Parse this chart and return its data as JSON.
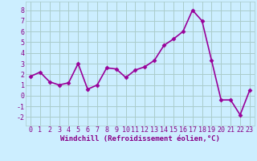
{
  "x": [
    0,
    1,
    2,
    3,
    4,
    5,
    6,
    7,
    8,
    9,
    10,
    11,
    12,
    13,
    14,
    15,
    16,
    17,
    18,
    19,
    20,
    21,
    22,
    23
  ],
  "y": [
    1.8,
    2.2,
    1.3,
    1.0,
    1.2,
    3.0,
    0.6,
    1.0,
    2.6,
    2.5,
    1.7,
    2.4,
    2.7,
    3.3,
    4.7,
    5.3,
    6.0,
    8.0,
    7.0,
    3.3,
    -0.4,
    -0.4,
    -1.8,
    0.5
  ],
  "line_color": "#990099",
  "marker": "D",
  "marker_size": 2.5,
  "xlabel": "Windchill (Refroidissement éolien,°C)",
  "xlabel_fontsize": 6.5,
  "ylim": [
    -2.8,
    8.8
  ],
  "xlim": [
    -0.5,
    23.5
  ],
  "yticks": [
    -2,
    -1,
    0,
    1,
    2,
    3,
    4,
    5,
    6,
    7,
    8
  ],
  "xticks": [
    0,
    1,
    2,
    3,
    4,
    5,
    6,
    7,
    8,
    9,
    10,
    11,
    12,
    13,
    14,
    15,
    16,
    17,
    18,
    19,
    20,
    21,
    22,
    23
  ],
  "grid_color": "#aacccc",
  "background_color": "#cceeff",
  "tick_color": "#880088",
  "tick_fontsize": 6,
  "line_width": 1.2
}
